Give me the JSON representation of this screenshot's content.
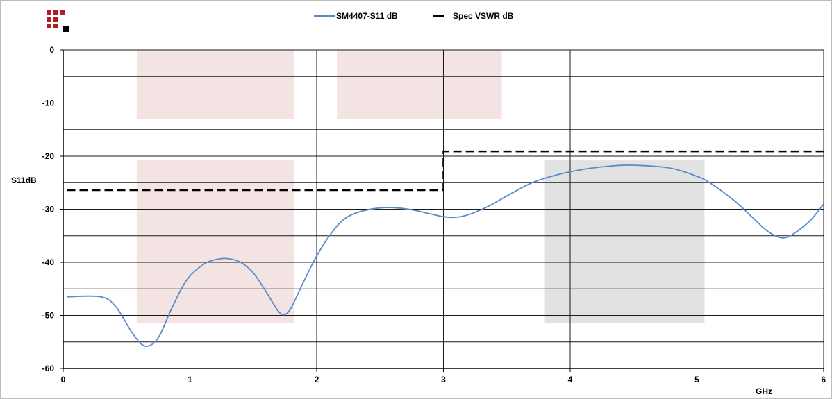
{
  "chart_data": {
    "type": "line",
    "title": "",
    "xlabel": "GHz",
    "ylabel": "S11dB",
    "xlim": [
      0,
      6
    ],
    "ylim": [
      -60,
      0
    ],
    "x_ticks": [
      0,
      1,
      2,
      3,
      4,
      5,
      6
    ],
    "y_ticks": [
      0,
      -10,
      -20,
      -30,
      -40,
      -50,
      -60
    ],
    "y_minor_gridlines": [
      -5,
      -15,
      -25,
      -35,
      -45,
      -55
    ],
    "grid": true,
    "legend_position": "top-center",
    "series": [
      {
        "name": "SM4407-S11 dB",
        "color": "#5b8ac8",
        "style": "solid",
        "points": [
          [
            0.03,
            -46.5
          ],
          [
            0.3,
            -46.5
          ],
          [
            0.42,
            -48.5
          ],
          [
            0.55,
            -53.5
          ],
          [
            0.65,
            -55.8
          ],
          [
            0.75,
            -54.2
          ],
          [
            0.85,
            -49.0
          ],
          [
            0.97,
            -43.5
          ],
          [
            1.1,
            -40.5
          ],
          [
            1.2,
            -39.5
          ],
          [
            1.3,
            -39.3
          ],
          [
            1.4,
            -40.0
          ],
          [
            1.5,
            -42.0
          ],
          [
            1.6,
            -45.5
          ],
          [
            1.7,
            -49.3
          ],
          [
            1.75,
            -49.8
          ],
          [
            1.8,
            -48.5
          ],
          [
            1.9,
            -43.5
          ],
          [
            2.0,
            -38.8
          ],
          [
            2.1,
            -35.0
          ],
          [
            2.2,
            -32.2
          ],
          [
            2.3,
            -30.8
          ],
          [
            2.45,
            -29.9
          ],
          [
            2.6,
            -29.7
          ],
          [
            2.75,
            -30.1
          ],
          [
            2.9,
            -30.9
          ],
          [
            3.0,
            -31.4
          ],
          [
            3.1,
            -31.5
          ],
          [
            3.2,
            -31.0
          ],
          [
            3.35,
            -29.5
          ],
          [
            3.5,
            -27.5
          ],
          [
            3.7,
            -25.0
          ],
          [
            3.9,
            -23.5
          ],
          [
            4.1,
            -22.5
          ],
          [
            4.3,
            -21.9
          ],
          [
            4.45,
            -21.7
          ],
          [
            4.6,
            -21.8
          ],
          [
            4.8,
            -22.3
          ],
          [
            5.0,
            -23.8
          ],
          [
            5.1,
            -25.0
          ],
          [
            5.3,
            -28.5
          ],
          [
            5.45,
            -31.8
          ],
          [
            5.55,
            -34.0
          ],
          [
            5.65,
            -35.3
          ],
          [
            5.72,
            -35.2
          ],
          [
            5.8,
            -34.0
          ],
          [
            5.9,
            -32.0
          ],
          [
            6.0,
            -29.0
          ]
        ]
      },
      {
        "name": "Spec VSWR dB",
        "color": "#000000",
        "style": "dashed",
        "points": [
          [
            0.03,
            -26.4
          ],
          [
            3.0,
            -26.4
          ],
          [
            3.0,
            -19.1
          ],
          [
            6.0,
            -19.1
          ]
        ]
      }
    ],
    "shaded_regions": [
      {
        "x": [
          0.58,
          1.82
        ],
        "y": [
          -13.0,
          0
        ],
        "color": "#f3e3e3"
      },
      {
        "x": [
          2.16,
          3.46
        ],
        "y": [
          -13.0,
          0
        ],
        "color": "#f3e3e3"
      },
      {
        "x": [
          0.58,
          1.82
        ],
        "y": [
          -51.5,
          -20.8
        ],
        "color": "#f3e3e3"
      },
      {
        "x": [
          3.8,
          5.06
        ],
        "y": [
          -51.5,
          -20.8
        ],
        "color": "#e2e2e2"
      }
    ]
  },
  "logo": {
    "name": "brand-logo",
    "colors": [
      "#b01e23",
      "#000000"
    ]
  }
}
